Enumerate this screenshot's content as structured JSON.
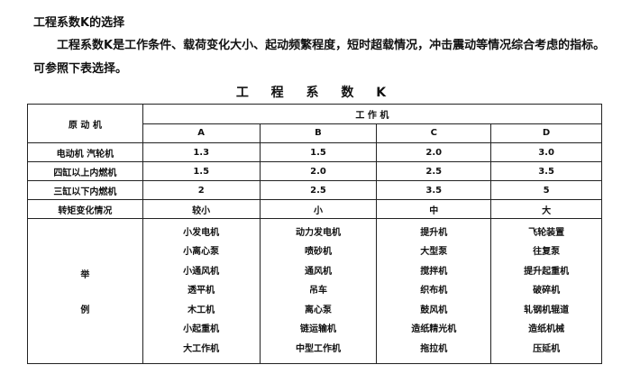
{
  "heading": "工程系数K的选择",
  "paragraph": "工程系数K是工作条件、载荷变化大小、起动频繁程度，短时超载情况，冲击震动等情况综合考虑的指标。可参照下表选择。",
  "table_title": "工 程 系 数  K",
  "table": {
    "col0_header": "原 动 机",
    "group_header": "工 作 机",
    "columns": [
      "A",
      "B",
      "C",
      "D"
    ],
    "rows": [
      {
        "label": "电动机  汽轮机",
        "values": [
          "1.3",
          "1.5",
          "2.0",
          "3.0"
        ]
      },
      {
        "label": "四缸以上内燃机",
        "values": [
          "1.5",
          "2.0",
          "2.5",
          "3.5"
        ]
      },
      {
        "label": "三缸以下内燃机",
        "values": [
          "2",
          "2.5",
          "3.5",
          "5"
        ]
      },
      {
        "label": "转矩变化情况",
        "values": [
          "较小",
          "小",
          "中",
          "大"
        ]
      }
    ],
    "examples_label": [
      "举",
      "例"
    ],
    "examples": [
      [
        "小发电机",
        "小离心泵",
        "小通风机",
        "透平机",
        "木工机",
        "小起重机",
        "大工作机"
      ],
      [
        "动力发电机",
        "喷砂机",
        "通风机",
        "吊车",
        "离心泵",
        "链运输机",
        "中型工作机"
      ],
      [
        "提升机",
        "大型泵",
        "搅拌机",
        "织布机",
        "鼓风机",
        "造纸精光机",
        "拖拉机"
      ],
      [
        "飞轮装置",
        "往复泵",
        "提升起重机",
        "破碎机",
        "轧钢机辊道",
        "造纸机械",
        "压延机"
      ]
    ]
  }
}
